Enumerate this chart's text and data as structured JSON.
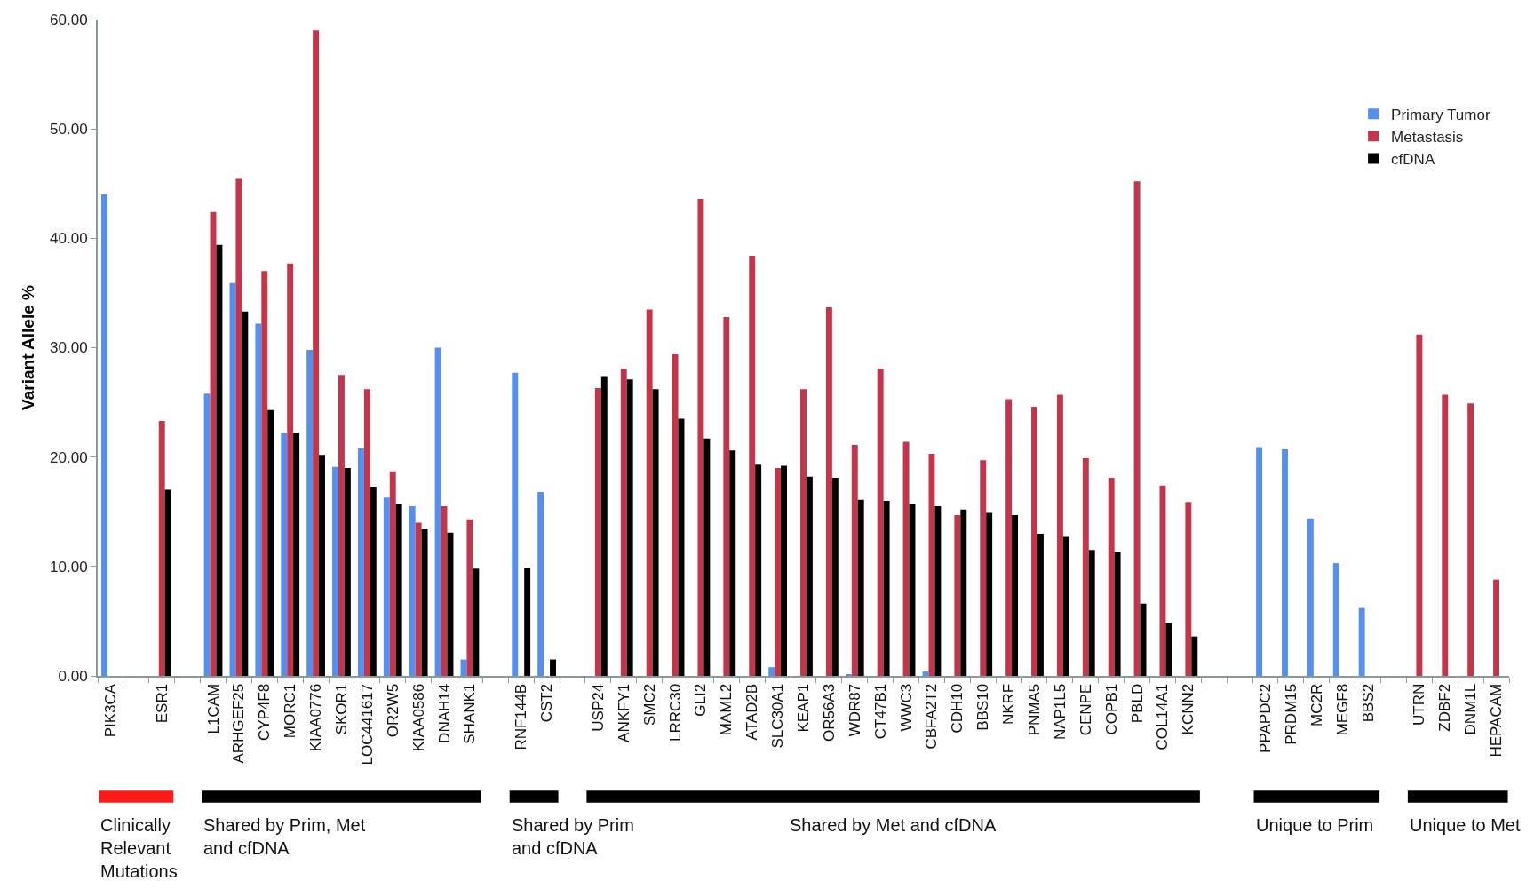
{
  "chart_data": {
    "type": "bar",
    "ylabel": "Variant Allele %",
    "categories": [
      "PIK3CA",
      null,
      "ESR1",
      null,
      "L1CAM",
      "ARHGEF25",
      "CYP4F8",
      "MORC1",
      "KIAA0776",
      "SKOR1",
      "LOC441617",
      "OR2W5",
      "KIAA0586",
      "DNAH14",
      "SHANK1",
      null,
      "RNF144B",
      "CST2",
      null,
      "USP24",
      "ANKFY1",
      "SMC2",
      "LRRC30",
      "GLI2",
      "MAML2",
      "ATAD2B",
      "SLC30A1",
      "KEAP1",
      "OR56A3",
      "WDR87",
      "CT47B1",
      "WWC3",
      "CBFA2T2",
      "CDH10",
      "BBS10",
      "NKRF",
      "PNMA5",
      "NAP1L5",
      "CENPE",
      "COPB1",
      "PBLD",
      "COL14A1",
      "KCNN2",
      null,
      null,
      "PPAPDC2",
      "PRDM15",
      "MC2R",
      "MEGF8",
      "BBS2",
      null,
      "UTRN",
      "ZDBF2",
      "DNM1L",
      "HEPACAM"
    ],
    "series": [
      {
        "name": "Primary Tumor",
        "color": "#5590ee",
        "values": [
          44.0,
          null,
          null,
          null,
          25.8,
          35.9,
          32.2,
          22.2,
          29.8,
          19.1,
          20.8,
          16.3,
          15.5,
          30.0,
          1.5,
          null,
          27.7,
          16.8,
          null,
          null,
          null,
          null,
          null,
          null,
          null,
          null,
          0.8,
          null,
          null,
          0.1,
          null,
          null,
          0.4,
          null,
          null,
          null,
          null,
          null,
          null,
          null,
          null,
          null,
          null,
          null,
          null,
          20.9,
          20.7,
          14.4,
          10.3,
          6.2,
          null,
          null,
          null,
          null,
          null
        ]
      },
      {
        "name": "Metastasis",
        "color": "#c2364b",
        "values": [
          null,
          null,
          23.3,
          null,
          42.4,
          45.5,
          37.0,
          37.7,
          59.0,
          27.5,
          26.2,
          18.7,
          14.0,
          15.5,
          14.3,
          null,
          null,
          null,
          null,
          26.3,
          28.1,
          33.5,
          29.4,
          43.6,
          32.8,
          38.4,
          19.0,
          26.2,
          33.7,
          21.1,
          28.1,
          21.4,
          20.3,
          14.7,
          19.7,
          25.3,
          24.6,
          25.7,
          19.9,
          18.1,
          45.2,
          17.4,
          15.9,
          null,
          null,
          null,
          null,
          null,
          null,
          null,
          null,
          31.2,
          25.7,
          24.9,
          8.8
        ]
      },
      {
        "name": "cfDNA",
        "color": "#000000",
        "values": [
          null,
          null,
          17.0,
          null,
          39.4,
          33.3,
          24.3,
          22.2,
          20.2,
          19.0,
          17.3,
          15.7,
          13.4,
          13.1,
          9.8,
          null,
          9.9,
          1.5,
          null,
          27.4,
          27.1,
          26.2,
          23.5,
          21.7,
          20.6,
          19.3,
          19.2,
          18.2,
          18.1,
          16.1,
          16.0,
          15.7,
          15.5,
          15.2,
          14.9,
          14.7,
          13.0,
          12.7,
          11.5,
          11.3,
          6.6,
          4.8,
          3.6,
          null,
          null,
          null,
          null,
          null,
          null,
          null,
          null,
          null,
          null,
          null,
          null
        ]
      }
    ],
    "ylim": [
      0,
      60
    ],
    "yticks": [
      {
        "value": 0,
        "label": "0.00"
      },
      {
        "value": 10,
        "label": "10.00"
      },
      {
        "value": 20,
        "label": "20.00"
      },
      {
        "value": 30,
        "label": "30.00"
      },
      {
        "value": 40,
        "label": "40.00"
      },
      {
        "value": 50,
        "label": "50.00"
      },
      {
        "value": 60,
        "label": "60.00"
      }
    ],
    "legend": "top right",
    "annotations": [
      "Clinically\nRelevant\nMutations",
      "Shared by Prim, Met\nand cfDNA",
      "Shared by Prim\nand cfDNA",
      "Shared by Met and cfDNA",
      "Unique to Prim",
      "Unique to Met"
    ]
  }
}
